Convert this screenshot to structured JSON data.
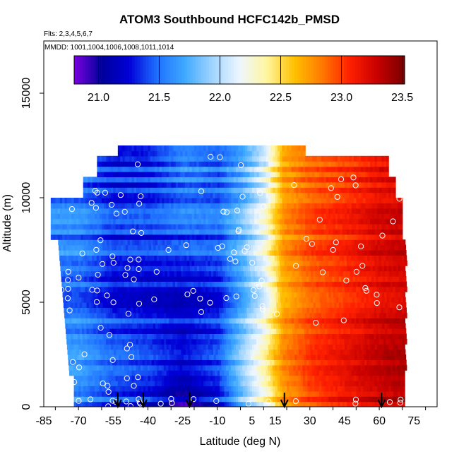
{
  "chart_data": {
    "type": "heatmap",
    "title": "ATOM3 Southbound HCFC142b_PMSD",
    "subtitle_flights": "Flts: 2,3,4,5,6,7",
    "subtitle_dates": "MMDD: 1001,1004,1006,1008,1011,1014",
    "xlabel": "Latitude (deg N)",
    "ylabel": "Altitude (m)",
    "xlim": [
      -85,
      85
    ],
    "ylim": [
      0,
      17500
    ],
    "x_ticks": [
      -85,
      -70,
      -55,
      -40,
      -25,
      -10,
      5,
      15,
      30,
      45,
      60,
      75
    ],
    "y_ticks": [
      0,
      5000,
      10000,
      15000
    ],
    "colorbar": {
      "range": [
        20.8,
        23.52
      ],
      "ticks": [
        21.0,
        21.5,
        22.0,
        22.5,
        23.0,
        23.5
      ],
      "tick_labels": [
        "21.0",
        "21.5",
        "22.0",
        "22.5",
        "23.0",
        "23.5"
      ],
      "palette": [
        "#7a00e0",
        "#00009a",
        "#0000d8",
        "#1f6fff",
        "#3ea8ff",
        "#9fd4ff",
        "#eef6ff",
        "#fff6a0",
        "#ffc000",
        "#ff7a00",
        "#ff2000",
        "#c80000",
        "#780000"
      ]
    },
    "profile_gradient": {
      "latitude": [
        -70,
        -55,
        -40,
        -25,
        -10,
        0,
        10,
        18,
        30,
        45,
        60,
        70
      ],
      "value_low_alt": [
        21.6,
        21.4,
        21.3,
        21.05,
        21.3,
        21.85,
        22.3,
        22.75,
        23.0,
        23.15,
        23.3,
        23.35
      ],
      "value_high_alt": [
        21.5,
        21.3,
        21.35,
        21.6,
        21.5,
        21.7,
        22.1,
        22.7,
        22.9,
        23.0,
        23.15,
        23.2
      ]
    },
    "sounding_arrows_latitude": [
      -53,
      -42,
      -22,
      19,
      61
    ]
  }
}
